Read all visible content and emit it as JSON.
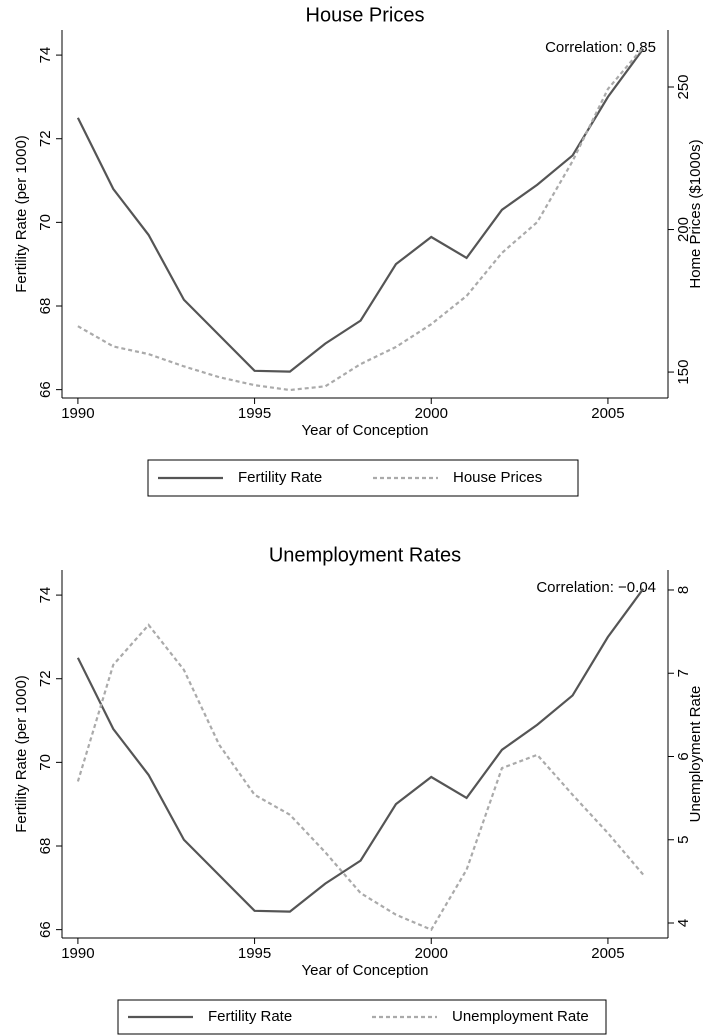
{
  "chart_data": [
    {
      "type": "line",
      "title": "House Prices",
      "annotation": "Correlation: 0.85",
      "x_label": "Year of Conception",
      "y_label": "Fertility Rate (per 1000)",
      "y2_label": "Home Prices ($1000s)",
      "x": [
        1990,
        1991,
        1992,
        1993,
        1994,
        1995,
        1996,
        1997,
        1998,
        1999,
        2000,
        2001,
        2002,
        2003,
        2004,
        2005,
        2006
      ],
      "xlim": [
        1989.55,
        2006.7
      ],
      "xticks": [
        1990,
        1995,
        2000,
        2005
      ],
      "ylim": [
        65.8,
        74.6
      ],
      "yticks": [
        66,
        68,
        70,
        72,
        74
      ],
      "y2lim": [
        140.9,
        270
      ],
      "y2ticks": [
        150,
        200,
        250
      ],
      "series": [
        {
          "name": "Fertility Rate",
          "color": "#555555",
          "style": "solid",
          "values": [
            72.5,
            70.8,
            69.7,
            68.15,
            67.3,
            66.45,
            66.43,
            67.1,
            67.65,
            69.0,
            69.65,
            69.15,
            70.3,
            70.9,
            71.6,
            73.0,
            74.15
          ]
        },
        {
          "name": "House Prices",
          "color": "#aaaaaa",
          "style": "dashed",
          "axis": "y2",
          "values": [
            166.1,
            159,
            156.3,
            152,
            148.2,
            145.4,
            143.7,
            145,
            152.8,
            158.8,
            166.8,
            176.7,
            191.8,
            202.6,
            224,
            249.3,
            264
          ]
        }
      ]
    },
    {
      "type": "line",
      "title": "Unemployment Rates",
      "annotation": "Correlation: −0.04",
      "x_label": "Year of Conception",
      "y_label": "Fertility Rate (per 1000)",
      "y2_label": "Unemployment Rate",
      "x": [
        1990,
        1991,
        1992,
        1993,
        1994,
        1995,
        1996,
        1997,
        1998,
        1999,
        2000,
        2001,
        2002,
        2003,
        2004,
        2005,
        2006
      ],
      "xlim": [
        1989.55,
        2006.7
      ],
      "xticks": [
        1990,
        1995,
        2000,
        2005
      ],
      "ylim": [
        65.8,
        74.6
      ],
      "yticks": [
        66,
        68,
        70,
        72,
        74
      ],
      "y2lim": [
        3.82,
        8.24
      ],
      "y2ticks": [
        4,
        5,
        6,
        7,
        8
      ],
      "series": [
        {
          "name": "Fertility Rate",
          "color": "#555555",
          "style": "solid",
          "values": [
            72.5,
            70.8,
            69.7,
            68.15,
            67.3,
            66.45,
            66.43,
            67.1,
            67.65,
            69.0,
            69.65,
            69.15,
            70.3,
            70.9,
            71.6,
            73.0,
            74.15
          ]
        },
        {
          "name": "Unemployment Rate",
          "color": "#aaaaaa",
          "style": "dashed",
          "axis": "y2",
          "values": [
            5.7,
            7.1,
            7.58,
            7.04,
            6.14,
            5.54,
            5.3,
            4.85,
            4.36,
            4.1,
            3.92,
            4.64,
            5.86,
            6.02,
            5.54,
            5.08,
            4.58
          ]
        }
      ]
    }
  ]
}
